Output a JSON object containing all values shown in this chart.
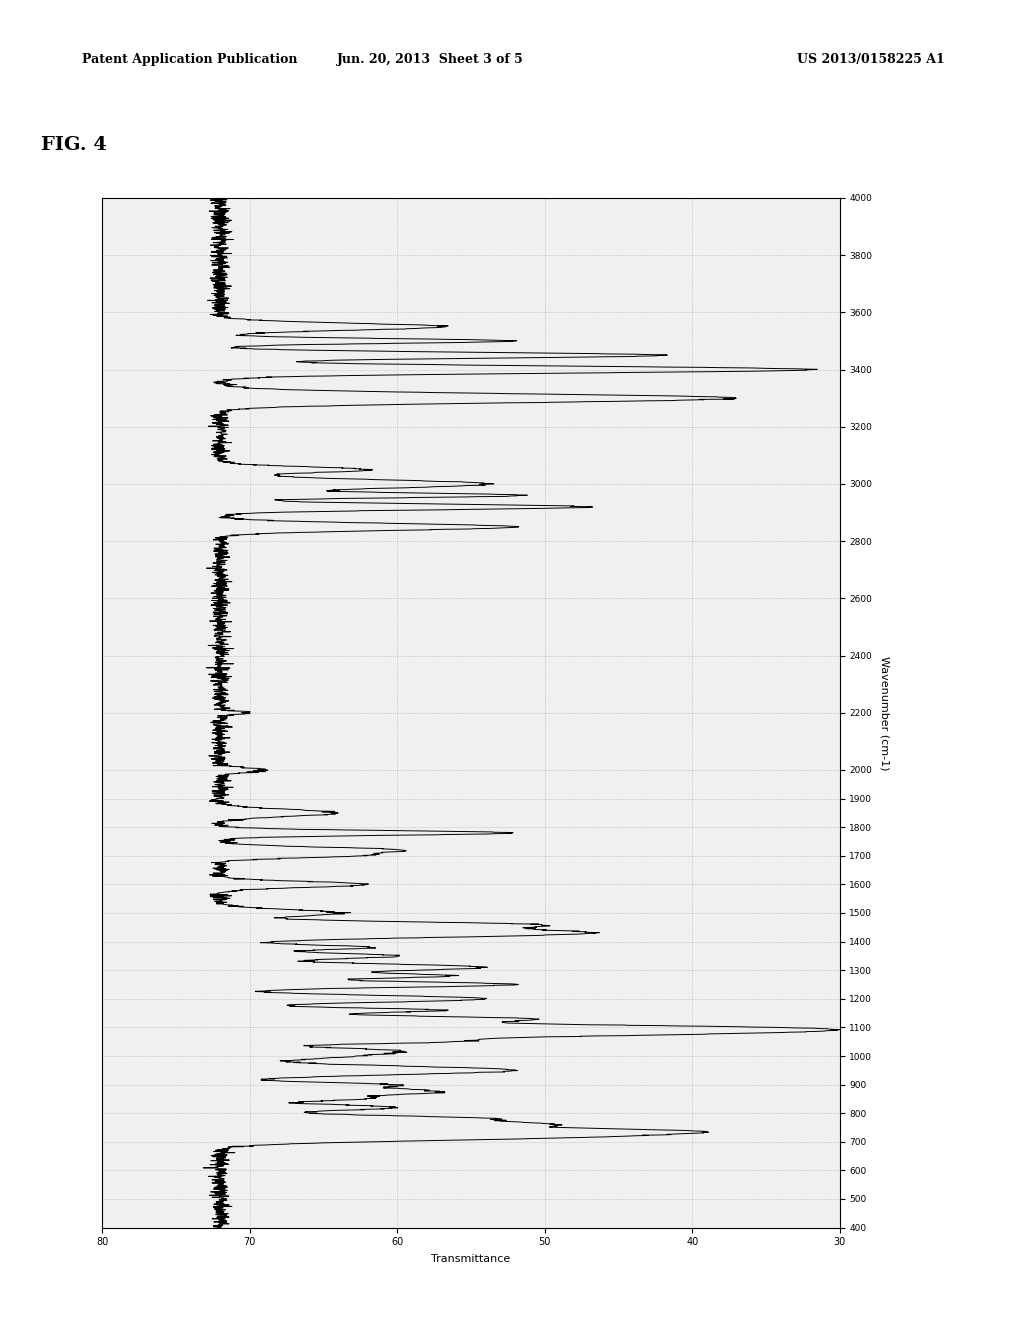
{
  "header_left": "Patent Application Publication",
  "header_center": "Jun. 20, 2013  Sheet 3 of 5",
  "header_right": "US 2013/0158225 A1",
  "fig_label": "FIG. 4",
  "x_label": "Transmittance",
  "y_label": "Wavenumber (cm-1)",
  "x_min": 30,
  "x_max": 80,
  "y_min": 400,
  "y_max": 4000,
  "y_ticks": [
    400,
    500,
    600,
    700,
    800,
    900,
    1000,
    1100,
    1200,
    1300,
    1400,
    1500,
    1600,
    1700,
    1800,
    1900,
    2000,
    2200,
    2400,
    2600,
    2800,
    3000,
    3200,
    3400,
    3600,
    3800,
    4000
  ],
  "x_ticks": [
    30,
    40,
    50,
    60,
    70,
    80
  ],
  "background_color": "#ffffff",
  "plot_bg_color": "#f0f0f0",
  "line_color": "#000000",
  "grid_color": "#aaaaaa"
}
